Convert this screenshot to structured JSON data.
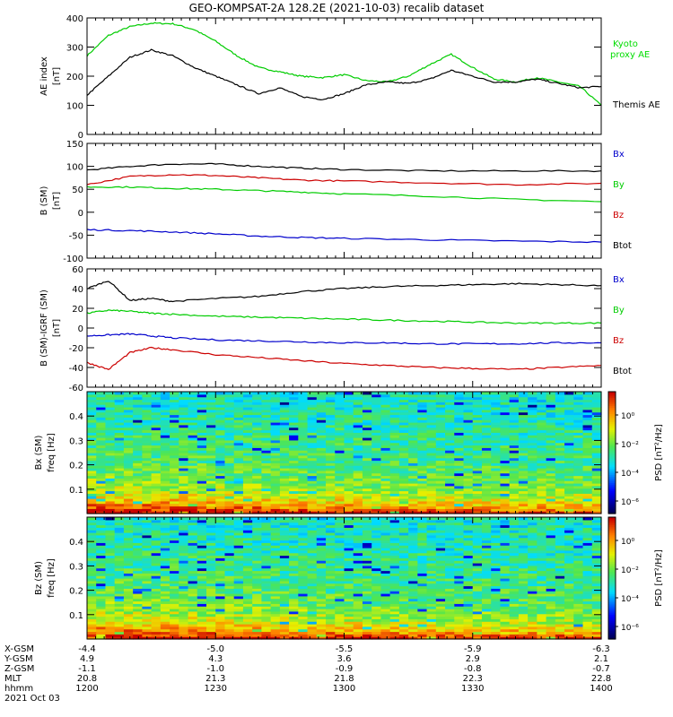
{
  "title": "GEO-KOMPSAT-2A 128.2E (2021-10-03) recalib dataset",
  "colors": {
    "black": "#000000",
    "green": "#00cc00",
    "red": "#cc0000",
    "blue": "#0000cc",
    "legend_green": "#00dd00"
  },
  "chart_data": [
    {
      "type": "line",
      "ylabel_lines": [
        "AE index",
        "[nT]"
      ],
      "ylim": [
        0,
        400
      ],
      "yticks": [
        0,
        100,
        200,
        300,
        400
      ],
      "legend": [
        {
          "text": "Kyoto",
          "color": "#00dd00"
        },
        {
          "text": "proxy AE",
          "color": "#00dd00"
        },
        {
          "text": "Themis AE",
          "color": "#000000"
        }
      ],
      "series": [
        {
          "color": "#00cc00",
          "x": [
            0,
            5,
            10,
            15,
            20,
            25,
            30,
            35,
            40,
            45,
            50,
            55,
            60,
            65,
            70,
            75,
            80,
            85,
            90,
            95,
            100,
            105,
            110,
            115,
            120
          ],
          "y": [
            270,
            340,
            370,
            382,
            380,
            360,
            320,
            270,
            230,
            215,
            200,
            195,
            205,
            185,
            180,
            200,
            240,
            275,
            230,
            190,
            180,
            195,
            180,
            165,
            100
          ]
        },
        {
          "color": "#000000",
          "x": [
            0,
            5,
            10,
            15,
            20,
            25,
            30,
            35,
            40,
            45,
            50,
            55,
            60,
            65,
            70,
            75,
            80,
            85,
            90,
            95,
            100,
            105,
            110,
            115,
            120
          ],
          "y": [
            135,
            200,
            265,
            290,
            270,
            230,
            200,
            170,
            140,
            160,
            130,
            120,
            140,
            170,
            180,
            175,
            190,
            220,
            200,
            180,
            180,
            190,
            175,
            160,
            165
          ]
        }
      ]
    },
    {
      "type": "line",
      "ylabel_lines": [
        "B (SM)",
        "[nT]"
      ],
      "ylim": [
        -100,
        150
      ],
      "yticks": [
        -100,
        -50,
        0,
        50,
        100,
        150
      ],
      "legend": [
        {
          "text": "Bx",
          "color": "#0000cc"
        },
        {
          "text": "By",
          "color": "#00cc00"
        },
        {
          "text": "Bz",
          "color": "#cc0000"
        },
        {
          "text": "Btot",
          "color": "#000000"
        }
      ],
      "series": [
        {
          "color": "#000000",
          "x": [
            0,
            10,
            20,
            30,
            40,
            50,
            60,
            80,
            100,
            120
          ],
          "y": [
            92,
            100,
            105,
            105,
            100,
            96,
            93,
            90,
            90,
            90
          ]
        },
        {
          "color": "#cc0000",
          "x": [
            0,
            10,
            20,
            30,
            40,
            50,
            60,
            80,
            100,
            120
          ],
          "y": [
            60,
            78,
            82,
            80,
            75,
            70,
            68,
            64,
            60,
            63
          ]
        },
        {
          "color": "#00cc00",
          "x": [
            0,
            10,
            20,
            30,
            40,
            50,
            60,
            80,
            100,
            120
          ],
          "y": [
            55,
            55,
            52,
            50,
            47,
            44,
            40,
            35,
            28,
            23
          ]
        },
        {
          "color": "#0000cc",
          "x": [
            0,
            10,
            20,
            30,
            40,
            50,
            60,
            80,
            100,
            120
          ],
          "y": [
            -38,
            -40,
            -43,
            -47,
            -52,
            -55,
            -57,
            -60,
            -63,
            -65
          ]
        }
      ]
    },
    {
      "type": "line",
      "ylabel_lines": [
        "B (SM)-IGRF (SM)",
        "[nT]"
      ],
      "ylim": [
        -60,
        60
      ],
      "yticks": [
        -60,
        -40,
        -20,
        0,
        20,
        40,
        60
      ],
      "legend": [
        {
          "text": "Bx",
          "color": "#0000cc"
        },
        {
          "text": "By",
          "color": "#00cc00"
        },
        {
          "text": "Bz",
          "color": "#cc0000"
        },
        {
          "text": "Btot",
          "color": "#000000"
        }
      ],
      "series": [
        {
          "color": "#000000",
          "x": [
            0,
            5,
            10,
            15,
            20,
            30,
            40,
            50,
            60,
            70,
            80,
            90,
            100,
            110,
            120
          ],
          "y": [
            40,
            48,
            28,
            30,
            27,
            30,
            32,
            37,
            40,
            42,
            43,
            44,
            45,
            44,
            43
          ]
        },
        {
          "color": "#00cc00",
          "x": [
            0,
            5,
            10,
            15,
            20,
            30,
            40,
            50,
            60,
            70,
            80,
            90,
            100,
            110,
            120
          ],
          "y": [
            15,
            18,
            17,
            15,
            14,
            12,
            11,
            10,
            9,
            8,
            7,
            6,
            5,
            5,
            5
          ]
        },
        {
          "color": "#0000cc",
          "x": [
            0,
            5,
            10,
            15,
            20,
            30,
            40,
            50,
            60,
            70,
            80,
            90,
            100,
            110,
            120
          ],
          "y": [
            -8,
            -7,
            -6,
            -8,
            -10,
            -12,
            -13,
            -14,
            -15,
            -15,
            -16,
            -16,
            -16,
            -15,
            -15
          ]
        },
        {
          "color": "#cc0000",
          "x": [
            0,
            5,
            10,
            15,
            20,
            30,
            40,
            50,
            60,
            70,
            80,
            90,
            100,
            110,
            120
          ],
          "y": [
            -35,
            -42,
            -25,
            -20,
            -22,
            -27,
            -30,
            -33,
            -36,
            -38,
            -40,
            -41,
            -42,
            -40,
            -38
          ]
        }
      ]
    },
    {
      "type": "heatmap",
      "ylabel_lines": [
        "Bx (SM)",
        "freq [Hz]"
      ],
      "ylim": [
        0,
        0.5
      ],
      "yticks": [
        0.1,
        0.2,
        0.3,
        0.4
      ],
      "colorbar": {
        "label": "PSD [nT²/Hz]",
        "ticks": [
          "10⁰",
          "10⁻²",
          "10⁻⁴",
          "10⁻⁶"
        ]
      }
    },
    {
      "type": "heatmap",
      "ylabel_lines": [
        "Bz (SM)",
        "freq [Hz]"
      ],
      "ylim": [
        0,
        0.5
      ],
      "yticks": [
        0.1,
        0.2,
        0.3,
        0.4
      ],
      "colorbar": {
        "label": "PSD [nT²/Hz]",
        "ticks": [
          "10⁰",
          "10⁻²",
          "10⁻⁴",
          "10⁻⁶"
        ]
      }
    }
  ],
  "xaxis": {
    "minutes": [
      0,
      30,
      60,
      90,
      120
    ],
    "rows": [
      {
        "label": "X-GSM",
        "values": [
          "-4.4",
          "-5.0",
          "-5.5",
          "-5.9",
          "-6.3"
        ]
      },
      {
        "label": "Y-GSM",
        "values": [
          "4.9",
          "4.3",
          "3.6",
          "2.9",
          "2.1"
        ]
      },
      {
        "label": "Z-GSM",
        "values": [
          "-1.1",
          "-1.0",
          "-0.9",
          "-0.8",
          "-0.7"
        ]
      },
      {
        "label": "MLT",
        "values": [
          "20.8",
          "21.3",
          "21.8",
          "22.3",
          "22.8"
        ]
      },
      {
        "label": "hhmm",
        "values": [
          "1200",
          "1230",
          "1300",
          "1330",
          "1400"
        ]
      }
    ],
    "date": "2021 Oct 03"
  }
}
